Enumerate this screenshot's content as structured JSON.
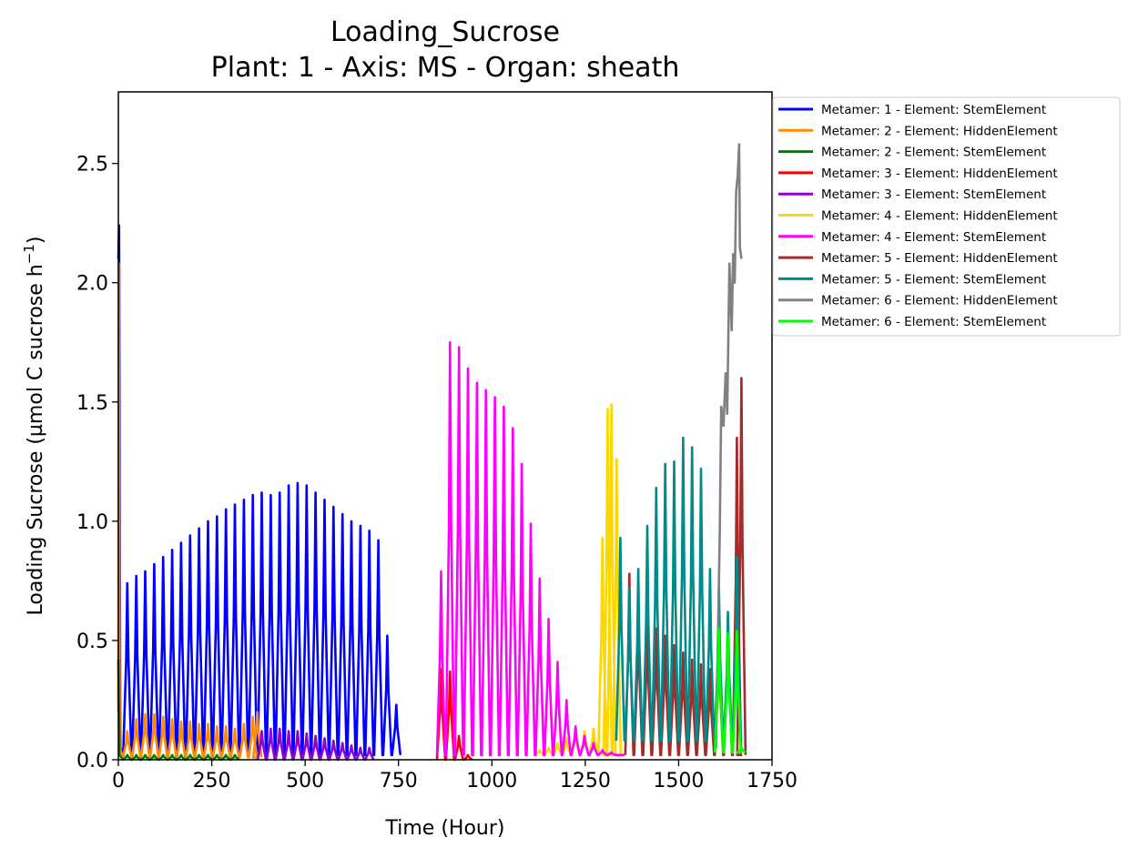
{
  "chart_data": {
    "type": "line",
    "title": "Loading_Sucrose",
    "subtitle": "Plant: 1 - Axis: MS - Organ: sheath",
    "xlabel": "Time (Hour)",
    "ylabel": "Loading Sucrose (µmol C sucrose h",
    "ylabel_sup": "−1",
    "ylabel_end": ")",
    "xlim": [
      0,
      1750
    ],
    "ylim": [
      0,
      2.8
    ],
    "xticks": [
      0,
      250,
      500,
      750,
      1000,
      1250,
      1500,
      1750
    ],
    "yticks": [
      0.0,
      0.5,
      1.0,
      1.5,
      2.0,
      2.5
    ],
    "xtick_labels": [
      "0",
      "250",
      "500",
      "750",
      "1000",
      "1250",
      "1500",
      "1750"
    ],
    "ytick_labels": [
      "0.0",
      "0.5",
      "1.0",
      "1.5",
      "2.0",
      "2.5"
    ],
    "grid": false,
    "legend_position": "outside upper-right",
    "series": [
      {
        "name": "Metamer: 1 - Element: StemElement",
        "color": "#0000ff",
        "peaks": [
          [
            24,
            0.74
          ],
          [
            48,
            0.77
          ],
          [
            72,
            0.79
          ],
          [
            96,
            0.82
          ],
          [
            120,
            0.85
          ],
          [
            144,
            0.88
          ],
          [
            168,
            0.91
          ],
          [
            192,
            0.94
          ],
          [
            216,
            0.97
          ],
          [
            240,
            1.0
          ],
          [
            264,
            1.02
          ],
          [
            288,
            1.05
          ],
          [
            312,
            1.07
          ],
          [
            336,
            1.09
          ],
          [
            360,
            1.11
          ],
          [
            384,
            1.12
          ],
          [
            408,
            1.11
          ],
          [
            432,
            1.12
          ],
          [
            456,
            1.15
          ],
          [
            480,
            1.16
          ],
          [
            504,
            1.15
          ],
          [
            528,
            1.12
          ],
          [
            552,
            1.09
          ],
          [
            576,
            1.06
          ],
          [
            600,
            1.03
          ],
          [
            624,
            1.0
          ],
          [
            648,
            0.98
          ],
          [
            672,
            0.96
          ],
          [
            696,
            0.92
          ],
          [
            720,
            0.52
          ],
          [
            744,
            0.23
          ]
        ],
        "base": 0.02,
        "start": [
          [
            0,
            2.1
          ],
          [
            2,
            2.24
          ],
          [
            5,
            0.05
          ]
        ]
      },
      {
        "name": "Metamer: 2 - Element: HiddenElement",
        "color": "#ff8c00",
        "peaks": [
          [
            24,
            0.12
          ],
          [
            48,
            0.17
          ],
          [
            72,
            0.19
          ],
          [
            96,
            0.19
          ],
          [
            120,
            0.18
          ],
          [
            144,
            0.17
          ],
          [
            168,
            0.16
          ],
          [
            192,
            0.16
          ],
          [
            216,
            0.15
          ],
          [
            240,
            0.15
          ],
          [
            264,
            0.14
          ],
          [
            288,
            0.14
          ],
          [
            312,
            0.13
          ],
          [
            336,
            0.15
          ],
          [
            360,
            0.18
          ],
          [
            372,
            0.2
          ]
        ],
        "base": 0.01,
        "start": [
          [
            0,
            0.2
          ],
          [
            1,
            2.08
          ],
          [
            4,
            0.05
          ]
        ]
      },
      {
        "name": "Metamer: 2 - Element: StemElement",
        "color": "#008000",
        "peaks": [
          [
            24,
            0.02
          ],
          [
            48,
            0.02
          ],
          [
            72,
            0.02
          ],
          [
            96,
            0.02
          ],
          [
            120,
            0.02
          ],
          [
            144,
            0.02
          ],
          [
            168,
            0.02
          ],
          [
            192,
            0.02
          ],
          [
            216,
            0.02
          ],
          [
            240,
            0.02
          ],
          [
            264,
            0.02
          ],
          [
            288,
            0.02
          ],
          [
            312,
            0.02
          ]
        ],
        "base": 0.0,
        "start": [
          [
            0,
            0.42
          ],
          [
            3,
            0.02
          ]
        ]
      },
      {
        "name": "Metamer: 3 - Element: HiddenElement",
        "color": "#ff0000",
        "peaks": [
          [
            864,
            0.38
          ],
          [
            888,
            0.37
          ],
          [
            912,
            0.1
          ],
          [
            936,
            0.02
          ]
        ],
        "base": 0.0,
        "start": []
      },
      {
        "name": "Metamer: 3 - Element: StemElement",
        "color": "#9400d3",
        "peaks": [
          [
            384,
            0.12
          ],
          [
            408,
            0.13
          ],
          [
            432,
            0.13
          ],
          [
            456,
            0.12
          ],
          [
            480,
            0.12
          ],
          [
            504,
            0.11
          ],
          [
            528,
            0.1
          ],
          [
            552,
            0.09
          ],
          [
            576,
            0.08
          ],
          [
            600,
            0.07
          ],
          [
            624,
            0.06
          ],
          [
            648,
            0.05
          ],
          [
            672,
            0.05
          ]
        ],
        "base": 0.0,
        "start": []
      },
      {
        "name": "Metamer: 4 - Element: HiddenElement",
        "color": "#ffd700",
        "peaks": [
          [
            1128,
            0.04
          ],
          [
            1152,
            0.05
          ],
          [
            1176,
            0.07
          ],
          [
            1200,
            0.09
          ],
          [
            1224,
            0.11
          ],
          [
            1248,
            0.12
          ],
          [
            1272,
            0.13
          ],
          [
            1296,
            0.93
          ],
          [
            1310,
            1.47
          ],
          [
            1320,
            1.49
          ],
          [
            1334,
            1.26
          ]
        ],
        "base": 0.02,
        "start": []
      },
      {
        "name": "Metamer: 4 - Element: StemElement",
        "color": "#ff00ff",
        "peaks": [
          [
            864,
            0.79
          ],
          [
            888,
            1.75
          ],
          [
            912,
            1.73
          ],
          [
            936,
            1.64
          ],
          [
            960,
            1.58
          ],
          [
            984,
            1.55
          ],
          [
            1008,
            1.52
          ],
          [
            1032,
            1.48
          ],
          [
            1056,
            1.39
          ],
          [
            1080,
            1.24
          ],
          [
            1104,
            0.99
          ],
          [
            1128,
            0.76
          ],
          [
            1152,
            0.59
          ],
          [
            1176,
            0.41
          ],
          [
            1200,
            0.25
          ],
          [
            1224,
            0.14
          ],
          [
            1248,
            0.1
          ],
          [
            1272,
            0.07
          ],
          [
            1296,
            0.04
          ],
          [
            1320,
            0.03
          ],
          [
            1344,
            0.02
          ]
        ],
        "base": 0.02,
        "start": []
      },
      {
        "name": "Metamer: 5 - Element: HiddenElement",
        "color": "#a52a2a",
        "peaks": [
          [
            1368,
            0.78
          ],
          [
            1392,
            0.64
          ],
          [
            1416,
            0.59
          ],
          [
            1440,
            0.55
          ],
          [
            1464,
            0.52
          ],
          [
            1488,
            0.48
          ],
          [
            1512,
            0.45
          ],
          [
            1536,
            0.42
          ],
          [
            1560,
            0.4
          ],
          [
            1584,
            0.38
          ],
          [
            1608,
            0.52
          ],
          [
            1632,
            0.6
          ],
          [
            1656,
            1.35
          ],
          [
            1668,
            1.6
          ]
        ],
        "base": 0.02,
        "start": []
      },
      {
        "name": "Metamer: 5 - Element: StemElement",
        "color": "#008b8b",
        "peaks": [
          [
            1344,
            0.93
          ],
          [
            1368,
            0.72
          ],
          [
            1392,
            0.8
          ],
          [
            1416,
            0.98
          ],
          [
            1440,
            1.14
          ],
          [
            1464,
            1.24
          ],
          [
            1488,
            1.25
          ],
          [
            1512,
            1.35
          ],
          [
            1536,
            1.31
          ],
          [
            1560,
            1.22
          ],
          [
            1584,
            0.8
          ],
          [
            1608,
            0.72
          ],
          [
            1632,
            0.62
          ],
          [
            1656,
            0.85
          ]
        ],
        "base": 0.08,
        "start": []
      },
      {
        "name": "Metamer: 6 - Element: HiddenElement",
        "color": "#808080",
        "points": [
          [
            1600,
            0.05
          ],
          [
            1610,
            0.95
          ],
          [
            1614,
            1.48
          ],
          [
            1620,
            1.4
          ],
          [
            1626,
            1.62
          ],
          [
            1630,
            1.45
          ],
          [
            1636,
            2.08
          ],
          [
            1642,
            1.8
          ],
          [
            1646,
            2.12
          ],
          [
            1650,
            2.0
          ],
          [
            1654,
            2.38
          ],
          [
            1658,
            2.45
          ],
          [
            1662,
            2.58
          ],
          [
            1664,
            2.15
          ],
          [
            1668,
            2.1
          ]
        ]
      },
      {
        "name": "Metamer: 6 - Element: StemElement",
        "color": "#00ff00",
        "peaks": [
          [
            1608,
            0.55
          ],
          [
            1632,
            0.53
          ],
          [
            1656,
            0.54
          ],
          [
            1668,
            0.05
          ]
        ],
        "base": 0.03,
        "start": []
      }
    ]
  }
}
